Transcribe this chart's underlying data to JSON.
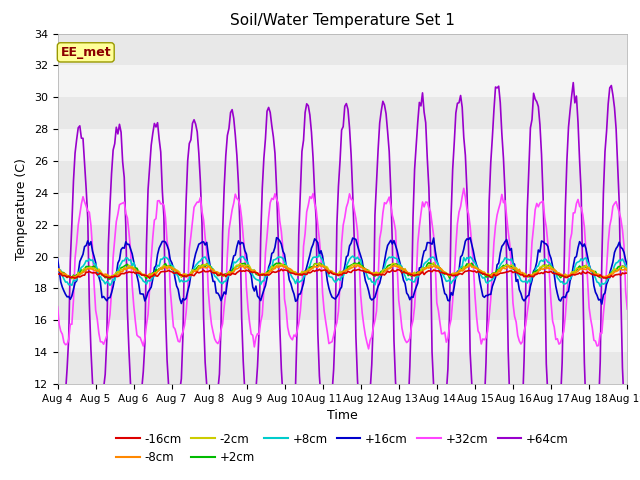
{
  "title": "Soil/Water Temperature Set 1",
  "xlabel": "Time",
  "ylabel": "Temperature (C)",
  "ylim": [
    12,
    34
  ],
  "xlim": [
    0,
    15
  ],
  "x_tick_labels": [
    "Aug 4",
    "Aug 5",
    "Aug 6",
    "Aug 7",
    "Aug 8",
    "Aug 9",
    "Aug 10",
    "Aug 11",
    "Aug 12",
    "Aug 13",
    "Aug 14",
    "Aug 15",
    "Aug 16",
    "Aug 17",
    "Aug 18",
    "Aug 19"
  ],
  "bg_color": "#ffffff",
  "band_color_dark": "#e0e0e0",
  "band_color_light": "#f0f0f0",
  "series_colors": {
    "-16cm": "#dd0000",
    "-8cm": "#ff8800",
    "-2cm": "#cccc00",
    "+2cm": "#00bb00",
    "+8cm": "#00cccc",
    "+16cm": "#0000cc",
    "+32cm": "#ff44ff",
    "+64cm": "#9900cc"
  },
  "legend_ncol_row1": [
    "-16cm",
    "-8cm",
    "-2cm",
    "+2cm",
    "+8cm",
    "+16cm"
  ],
  "legend_ncol_row2": [
    "+32cm",
    "+64cm"
  ]
}
